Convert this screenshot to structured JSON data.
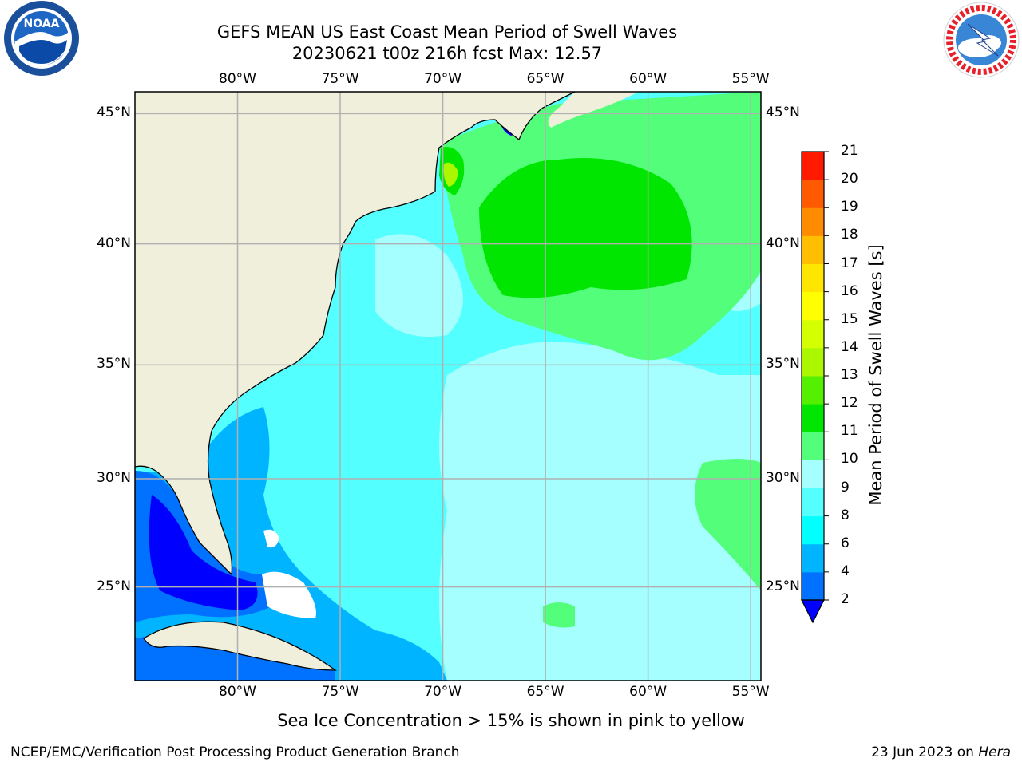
{
  "header": {
    "title_line1": "GEFS MEAN US East Coast Mean Period of Swell Waves",
    "title_line2": "20230621 t00z 216h fcst   Max: 12.57"
  },
  "logos": {
    "left": "noaa-logo",
    "right": "national-weather-service-logo"
  },
  "map": {
    "lon_labels": [
      "80°W",
      "75°W",
      "70°W",
      "65°W",
      "60°W",
      "55°W"
    ],
    "lat_labels": [
      "45°N",
      "40°N",
      "35°N",
      "30°N",
      "25°N"
    ],
    "lon_range": [
      -85,
      -54.5
    ],
    "lat_range": [
      20.5,
      45.8
    ],
    "land_color": "#efefdc",
    "grid_color": "#b0b0b0"
  },
  "colorbar": {
    "label": "Mean Period of Swell Waves [s]",
    "ticks": [
      "2",
      "4",
      "6",
      "8",
      "9",
      "10",
      "11",
      "12",
      "13",
      "14",
      "15",
      "16",
      "17",
      "18",
      "19",
      "20",
      "21"
    ],
    "colors": [
      "#0072ff",
      "#00b4ff",
      "#00ffff",
      "#53ffff",
      "#a6ffff",
      "#53ff7a",
      "#00e600",
      "#55ef00",
      "#aaf700",
      "#d4ff00",
      "#ffff00",
      "#ffe600",
      "#ffbf00",
      "#ff8c00",
      "#ff5a00",
      "#ff1a00"
    ],
    "under_color": "#0000ff"
  },
  "footer": {
    "note": "Sea Ice Concentration > 15% is shown in pink to yellow",
    "credit": "NCEP/EMC/Verification Post Processing Product Generation Branch",
    "date": "23 Jun 2023 on",
    "machine": "Hera"
  }
}
